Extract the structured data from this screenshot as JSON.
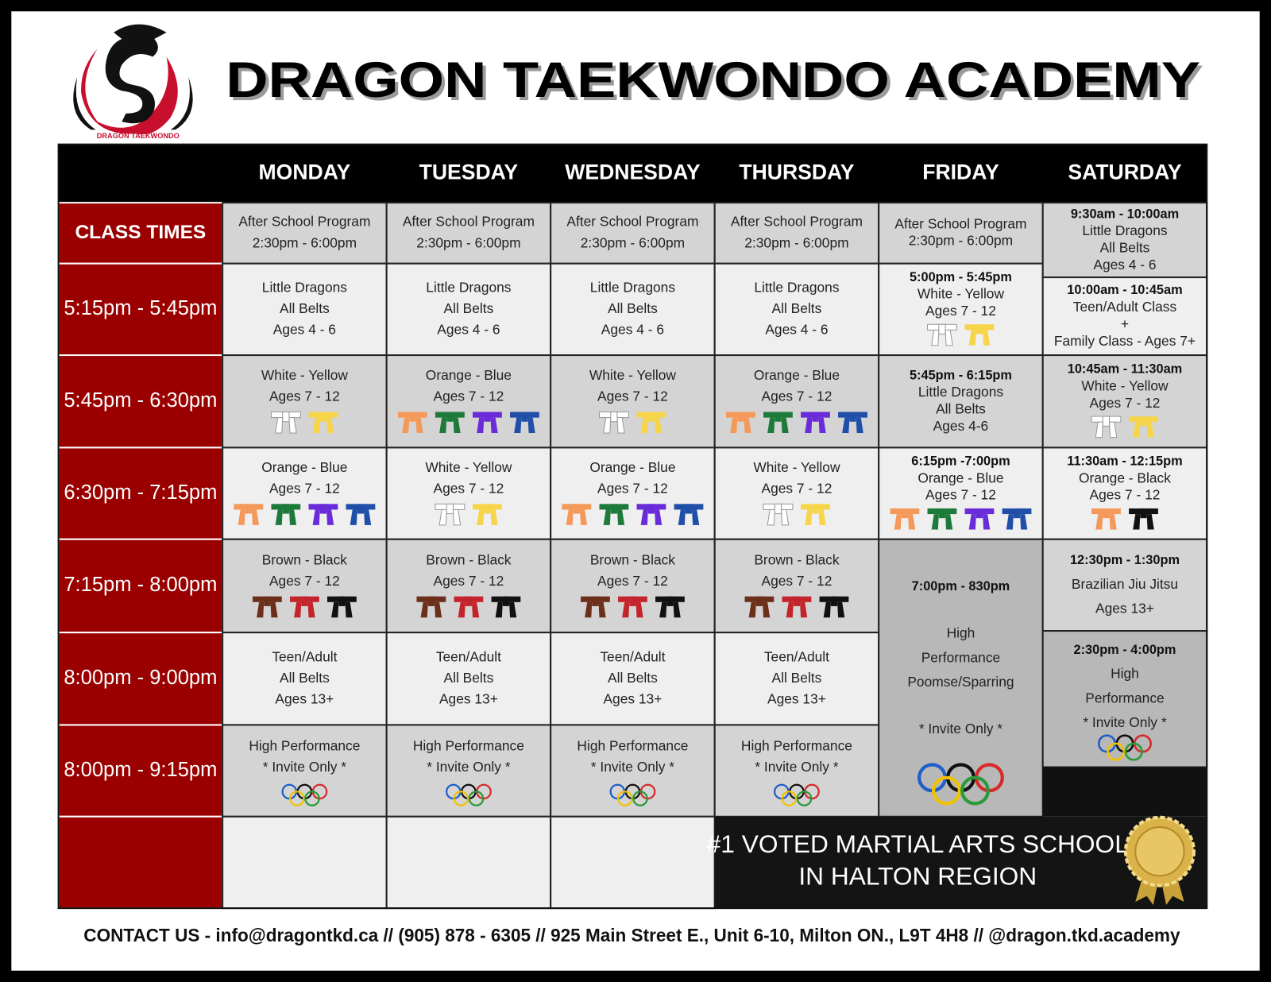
{
  "header": {
    "logo_text": "DRAGON TAEKWONDO",
    "title": "DRAGON TAEKWONDO ACADEMY"
  },
  "table": {
    "days": [
      "MONDAY",
      "TUESDAY",
      "WEDNESDAY",
      "THURSDAY",
      "FRIDAY",
      "SATURDAY"
    ],
    "class_times_label": "CLASS TIMES",
    "times": [
      "5:15pm - 5:45pm",
      "5:45pm - 6:30pm",
      "6:30pm - 7:15pm",
      "7:15pm - 8:00pm",
      "8:00pm - 9:00pm",
      "8:00pm - 9:15pm"
    ],
    "weekday_columns": [
      {
        "cells": [
          {
            "lines": [
              "After School Program",
              "2:30pm - 6:00pm"
            ]
          },
          {
            "lines": [
              "Little Dragons",
              "All Belts",
              "Ages 4 - 6"
            ]
          },
          {
            "lines": [
              "White - Yellow",
              "Ages 7 - 12"
            ],
            "belts": [
              "#ffffff",
              "#f7d54a"
            ]
          },
          {
            "lines": [
              "Orange - Blue",
              "Ages 7 - 12"
            ],
            "belts": [
              "#f4995a",
              "#1e7a3a",
              "#6a2bd9",
              "#1f4fa8"
            ]
          },
          {
            "lines": [
              "Brown - Black",
              "Ages 7 - 12"
            ],
            "belts": [
              "#6b2f1a",
              "#c4242b",
              "#111111"
            ]
          },
          {
            "lines": [
              "Teen/Adult",
              "All Belts",
              "Ages 13+"
            ]
          },
          {
            "lines": [
              "High Performance",
              "* Invite Only *"
            ],
            "rings": true
          }
        ]
      },
      {
        "cells": [
          {
            "lines": [
              "After School Program",
              "2:30pm - 6:00pm"
            ]
          },
          {
            "lines": [
              "Little Dragons",
              "All Belts",
              "Ages 4 - 6"
            ]
          },
          {
            "lines": [
              "Orange - Blue",
              "Ages 7 - 12"
            ],
            "belts": [
              "#f4995a",
              "#1e7a3a",
              "#6a2bd9",
              "#1f4fa8"
            ]
          },
          {
            "lines": [
              "White - Yellow",
              "Ages 7 - 12"
            ],
            "belts": [
              "#ffffff",
              "#f7d54a"
            ]
          },
          {
            "lines": [
              "Brown - Black",
              "Ages 7 - 12"
            ],
            "belts": [
              "#6b2f1a",
              "#c4242b",
              "#111111"
            ]
          },
          {
            "lines": [
              "Teen/Adult",
              "All Belts",
              "Ages 13+"
            ]
          },
          {
            "lines": [
              "High Performance",
              "* Invite Only *"
            ],
            "rings": true
          }
        ]
      },
      {
        "cells": [
          {
            "lines": [
              "After School Program",
              "2:30pm - 6:00pm"
            ]
          },
          {
            "lines": [
              "Little Dragons",
              "All Belts",
              "Ages 4 - 6"
            ]
          },
          {
            "lines": [
              "White - Yellow",
              "Ages 7 - 12"
            ],
            "belts": [
              "#ffffff",
              "#f7d54a"
            ]
          },
          {
            "lines": [
              "Orange - Blue",
              "Ages 7 - 12"
            ],
            "belts": [
              "#f4995a",
              "#1e7a3a",
              "#6a2bd9",
              "#1f4fa8"
            ]
          },
          {
            "lines": [
              "Brown - Black",
              "Ages 7 - 12"
            ],
            "belts": [
              "#6b2f1a",
              "#c4242b",
              "#111111"
            ]
          },
          {
            "lines": [
              "Teen/Adult",
              "All Belts",
              "Ages 13+"
            ]
          },
          {
            "lines": [
              "High Performance",
              "* Invite Only *"
            ],
            "rings": true
          }
        ]
      },
      {
        "cells": [
          {
            "lines": [
              "After School Program",
              "2:30pm - 6:00pm"
            ]
          },
          {
            "lines": [
              "Little Dragons",
              "All Belts",
              "Ages 4 - 6"
            ]
          },
          {
            "lines": [
              "Orange - Blue",
              "Ages 7 - 12"
            ],
            "belts": [
              "#f4995a",
              "#1e7a3a",
              "#6a2bd9",
              "#1f4fa8"
            ]
          },
          {
            "lines": [
              "White - Yellow",
              "Ages 7 - 12"
            ],
            "belts": [
              "#ffffff",
              "#f7d54a"
            ]
          },
          {
            "lines": [
              "Brown - Black",
              "Ages 7 - 12"
            ],
            "belts": [
              "#6b2f1a",
              "#c4242b",
              "#111111"
            ]
          },
          {
            "lines": [
              "Teen/Adult",
              "All Belts",
              "Ages 13+"
            ]
          },
          {
            "lines": [
              "High Performance",
              "* Invite Only *"
            ],
            "rings": true
          }
        ]
      }
    ],
    "friday": [
      {
        "lines": [
          "After School Program",
          "2:30pm - 6:00pm"
        ]
      },
      {
        "time": "5:00pm - 5:45pm",
        "lines": [
          "White - Yellow",
          "Ages 7 - 12"
        ],
        "belts": [
          "#ffffff",
          "#f7d54a"
        ]
      },
      {
        "time": "5:45pm - 6:15pm",
        "lines": [
          "Little Dragons",
          "All Belts",
          "Ages 4-6"
        ]
      },
      {
        "time": "6:15pm -7:00pm",
        "lines": [
          "Orange - Blue",
          "Ages 7 - 12"
        ],
        "belts": [
          "#f4995a",
          "#1e7a3a",
          "#6a2bd9",
          "#1f4fa8"
        ]
      },
      {
        "time": "7:00pm - 830pm",
        "lines": [
          "High",
          "Performance",
          "Poomse/Sparring",
          "* Invite Only *"
        ],
        "rings": true
      }
    ],
    "saturday": [
      {
        "time": "9:30am - 10:00am",
        "lines": [
          "Little Dragons",
          "All Belts",
          "Ages 4 - 6"
        ]
      },
      {
        "time": "10:00am - 10:45am",
        "lines": [
          "Teen/Adult Class",
          "+",
          "Family Class - Ages 7+"
        ]
      },
      {
        "time": "10:45am - 11:30am",
        "lines": [
          "White - Yellow",
          "Ages 7 - 12"
        ],
        "belts": [
          "#ffffff",
          "#f7d54a"
        ]
      },
      {
        "time": "11:30am - 12:15pm",
        "lines": [
          "Orange - Black",
          "Ages 7 - 12"
        ],
        "belts": [
          "#f4995a",
          "#111111"
        ]
      },
      {
        "time": "12:30pm - 1:30pm",
        "lines": [
          "Brazilian Jiu Jitsu",
          "Ages 13+"
        ]
      },
      {
        "time": "2:30pm - 4:00pm",
        "lines": [
          "High",
          "Performance",
          "* Invite Only *"
        ],
        "rings": true
      }
    ]
  },
  "award": [
    "#1 VOTED MARTIAL ARTS SCHOOL",
    "IN HALTON REGION"
  ],
  "footer": "CONTACT US  -  info@dragontkd.ca // (905) 878 - 6305 // 925 Main Street E., Unit 6-10, Milton ON., L9T 4H8 // @dragon.tkd.academy"
}
